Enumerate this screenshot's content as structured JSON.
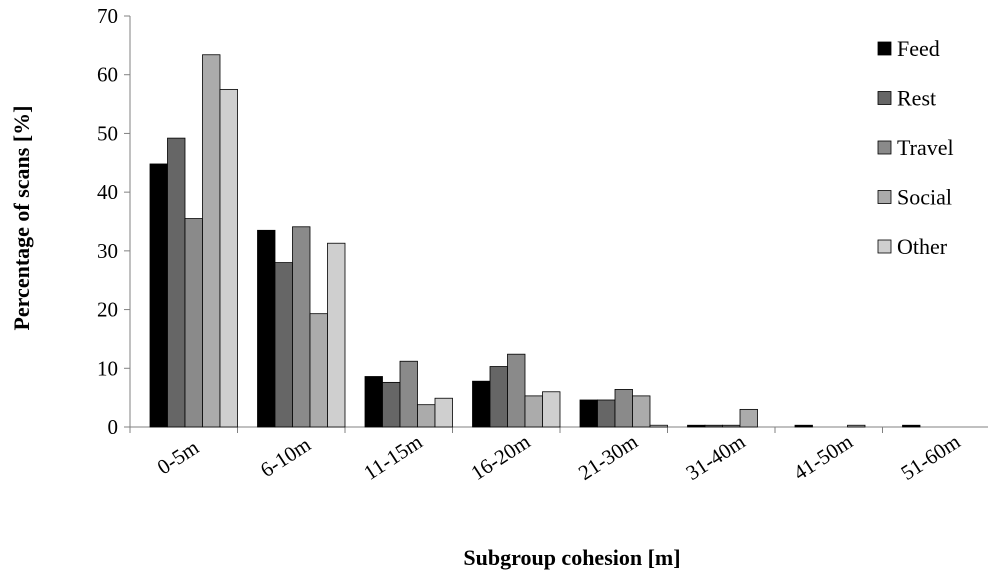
{
  "chart_data": {
    "type": "bar",
    "title": "",
    "xlabel": "Subgroup cohesion [m]",
    "ylabel": "Percentage of scans [%]",
    "ylim": [
      0,
      70
    ],
    "yticks": [
      0,
      10,
      20,
      30,
      40,
      50,
      60,
      70
    ],
    "grid": false,
    "legend_position": "right",
    "categories": [
      "0-5m",
      "6-10m",
      "11-15m",
      "16-20m",
      "21-30m",
      "31-40m",
      "41-50m",
      "51-60m"
    ],
    "series": [
      {
        "name": "Feed",
        "color": "#000000",
        "values": [
          44.8,
          33.5,
          8.6,
          7.8,
          4.6,
          0.3,
          0.3,
          0.3
        ]
      },
      {
        "name": "Rest",
        "color": "#666666",
        "values": [
          49.2,
          28.0,
          7.6,
          10.3,
          4.6,
          0.3,
          0.0,
          0.0
        ]
      },
      {
        "name": "Travel",
        "color": "#8a8a8a",
        "values": [
          35.5,
          34.1,
          11.2,
          12.4,
          6.4,
          0.3,
          0.0,
          0.0
        ]
      },
      {
        "name": "Social",
        "color": "#ababab",
        "values": [
          63.4,
          19.3,
          3.8,
          5.3,
          5.3,
          3.0,
          0.3,
          0.0
        ]
      },
      {
        "name": "Other",
        "color": "#cfcfcf",
        "values": [
          57.5,
          31.3,
          4.9,
          6.0,
          0.3,
          0.0,
          0.0,
          0.0
        ]
      }
    ]
  }
}
